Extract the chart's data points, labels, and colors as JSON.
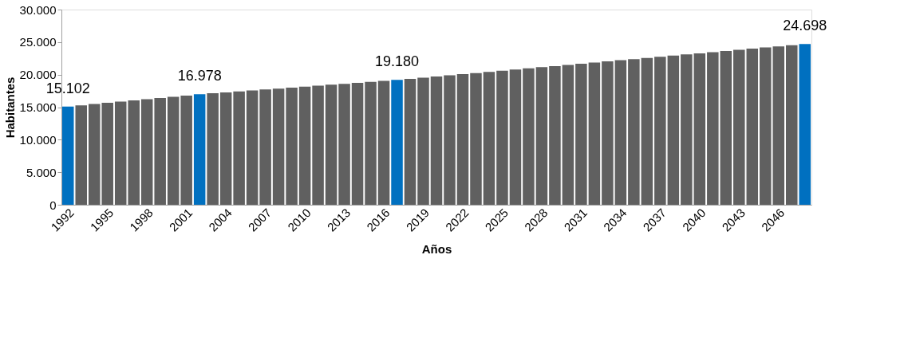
{
  "chart_data": {
    "type": "bar",
    "xlabel": "Años",
    "ylabel": "Habitantes",
    "categories": [
      "1992",
      null,
      null,
      "1995",
      null,
      null,
      "1998",
      null,
      null,
      "2001",
      null,
      null,
      "2004",
      null,
      null,
      "2007",
      null,
      null,
      "2010",
      null,
      null,
      "2013",
      null,
      null,
      "2016",
      null,
      null,
      "2019",
      null,
      null,
      "2022",
      null,
      null,
      "2025",
      null,
      null,
      "2028",
      null,
      null,
      "2031",
      null,
      null,
      "2034",
      null,
      null,
      "2037",
      null,
      null,
      "2040",
      null,
      null,
      "2043",
      null,
      null,
      "2046",
      null,
      null
    ],
    "values": [
      15102,
      15290,
      15480,
      15660,
      15850,
      16040,
      16230,
      16420,
      16600,
      16790,
      16978,
      17130,
      17270,
      17420,
      17570,
      17710,
      17860,
      18010,
      18150,
      18300,
      18450,
      18590,
      18740,
      18890,
      19030,
      19180,
      19360,
      19540,
      19710,
      19890,
      20070,
      20250,
      20430,
      20610,
      20780,
      20960,
      21140,
      21320,
      21500,
      21670,
      21850,
      22030,
      22210,
      22390,
      22570,
      22740,
      22920,
      23100,
      23280,
      23460,
      23630,
      23810,
      23990,
      24170,
      24350,
      24520,
      24698
    ],
    "colors": [
      "#0070c0",
      "#606060",
      "#606060",
      "#606060",
      "#606060",
      "#606060",
      "#606060",
      "#606060",
      "#606060",
      "#606060",
      "#0070c0",
      "#606060",
      "#606060",
      "#606060",
      "#606060",
      "#606060",
      "#606060",
      "#606060",
      "#606060",
      "#606060",
      "#606060",
      "#606060",
      "#606060",
      "#606060",
      "#606060",
      "#0070c0",
      "#606060",
      "#606060",
      "#606060",
      "#606060",
      "#606060",
      "#606060",
      "#606060",
      "#606060",
      "#606060",
      "#606060",
      "#606060",
      "#606060",
      "#606060",
      "#606060",
      "#606060",
      "#606060",
      "#606060",
      "#606060",
      "#606060",
      "#606060",
      "#606060",
      "#606060",
      "#606060",
      "#606060",
      "#606060",
      "#606060",
      "#606060",
      "#606060",
      "#606060",
      "#606060",
      "#0070c0"
    ],
    "value_labels": [
      "15.102",
      null,
      null,
      null,
      null,
      null,
      null,
      null,
      null,
      null,
      "16.978",
      null,
      null,
      null,
      null,
      null,
      null,
      null,
      null,
      null,
      null,
      null,
      null,
      null,
      null,
      "19.180",
      null,
      null,
      null,
      null,
      null,
      null,
      null,
      null,
      null,
      null,
      null,
      null,
      null,
      null,
      null,
      null,
      null,
      null,
      null,
      null,
      null,
      null,
      null,
      null,
      null,
      null,
      null,
      null,
      null,
      null,
      "24.698"
    ],
    "ylim": [
      0,
      30000
    ],
    "yticks": [
      0,
      {
        "value": 5000,
        "label": "5.000"
      },
      {
        "value": 10000,
        "label": "10.000"
      },
      {
        "value": 15000,
        "label": "15.000"
      },
      {
        "value": 20000,
        "label": "20.000"
      },
      {
        "value": 25000,
        "label": "25.000"
      },
      {
        "value": 30000,
        "label": "30.000"
      }
    ],
    "grid": false
  }
}
